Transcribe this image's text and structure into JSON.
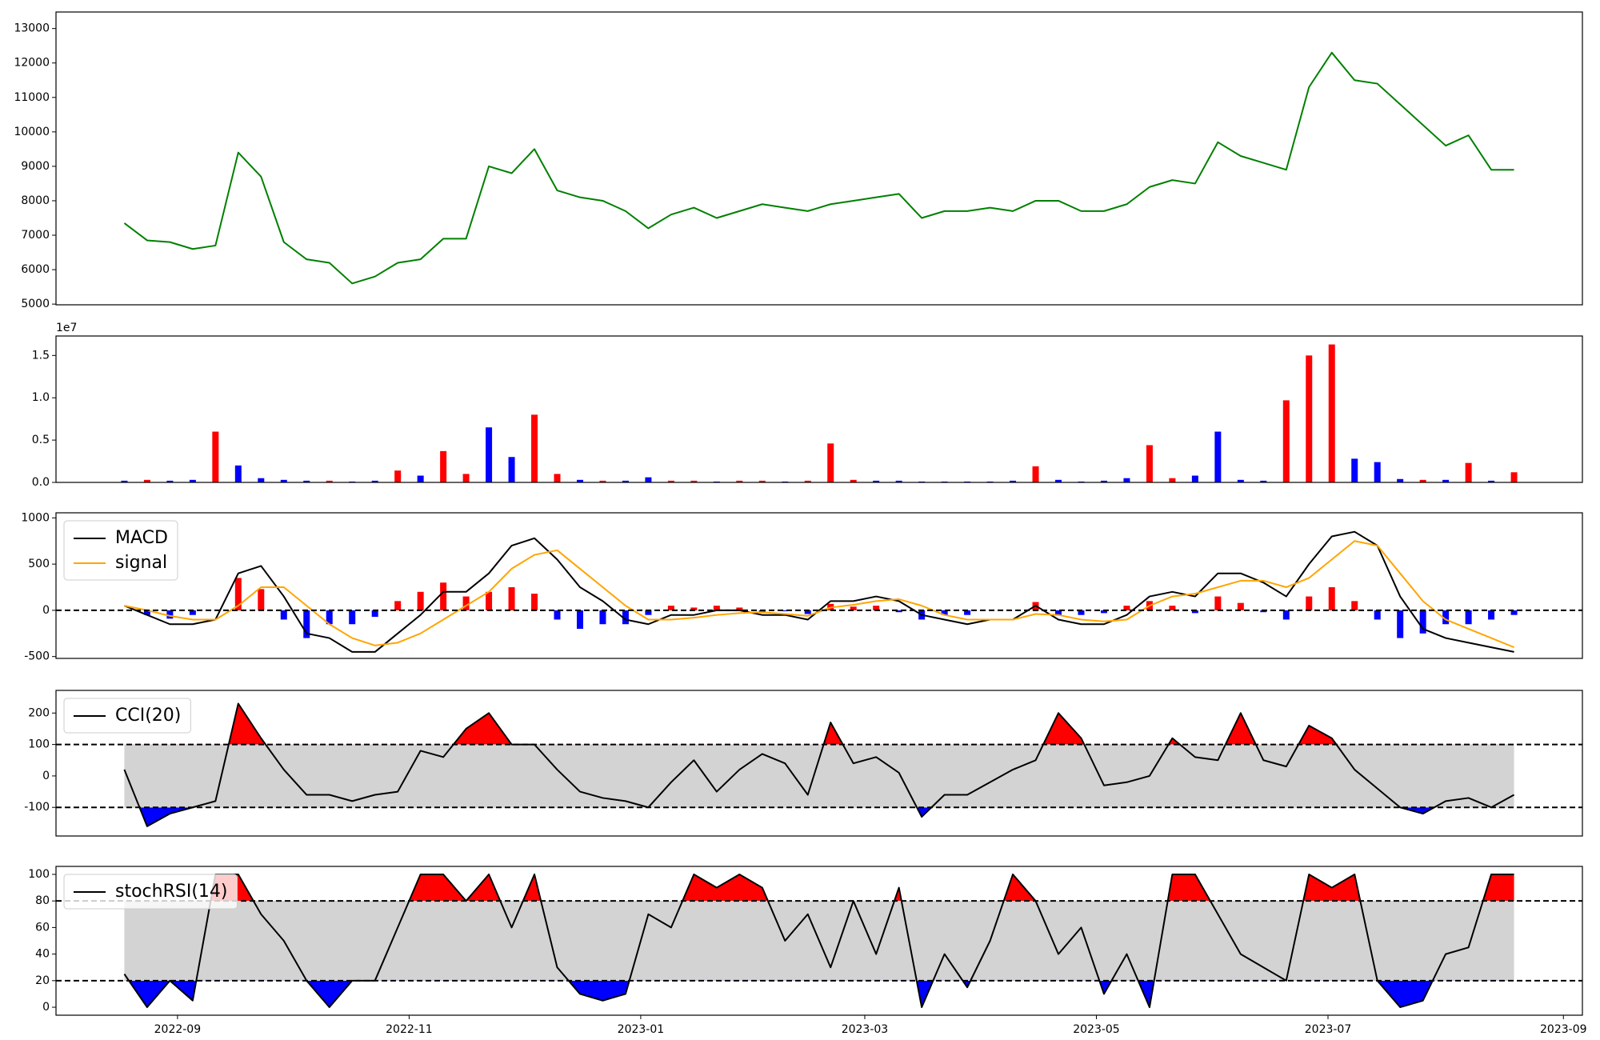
{
  "chart_data": [
    {
      "type": "line",
      "color": "green",
      "x": [
        19222,
        19228,
        19234,
        19240,
        19246,
        19252,
        19258,
        19264,
        19270,
        19276,
        19282,
        19288,
        19294,
        19300,
        19306,
        19312,
        19318,
        19324,
        19330,
        19336,
        19342,
        19348,
        19354,
        19360,
        19366,
        19372,
        19378,
        19384,
        19390,
        19396,
        19402,
        19408,
        19414,
        19420,
        19426,
        19432,
        19438,
        19444,
        19450,
        19456,
        19462,
        19468,
        19474,
        19480,
        19486,
        19492,
        19498,
        19504,
        19510,
        19516,
        19522,
        19528,
        19534,
        19540,
        19546,
        19552,
        19558,
        19564,
        19570,
        19576,
        19582,
        19588
      ],
      "values": [
        7350,
        6850,
        6800,
        6600,
        6700,
        9400,
        8700,
        6800,
        6300,
        6200,
        5600,
        5800,
        6200,
        6300,
        6900,
        6900,
        9000,
        8800,
        9500,
        8300,
        8100,
        8000,
        7700,
        7200,
        7600,
        7800,
        7500,
        7700,
        7900,
        7800,
        7700,
        7900,
        8000,
        8100,
        8200,
        7500,
        7700,
        7700,
        7800,
        7700,
        8000,
        8000,
        7700,
        7700,
        7900,
        8400,
        8600,
        8500,
        9700,
        9300,
        9100,
        8900,
        11300,
        12300,
        11500,
        11400,
        10800,
        10200,
        9600,
        9900,
        8900,
        8900
      ],
      "xlim": [
        19204,
        19606
      ],
      "ylim": [
        4980,
        13480
      ],
      "yticks": [
        5000,
        6000,
        7000,
        8000,
        9000,
        10000,
        11000,
        12000,
        13000
      ]
    },
    {
      "type": "bar",
      "offset_label": "1e7",
      "x": [
        19222,
        19228,
        19234,
        19240,
        19246,
        19252,
        19258,
        19264,
        19270,
        19276,
        19282,
        19288,
        19294,
        19300,
        19306,
        19312,
        19318,
        19324,
        19330,
        19336,
        19342,
        19348,
        19354,
        19360,
        19366,
        19372,
        19378,
        19384,
        19390,
        19396,
        19402,
        19408,
        19414,
        19420,
        19426,
        19432,
        19438,
        19444,
        19450,
        19456,
        19462,
        19468,
        19474,
        19480,
        19486,
        19492,
        19498,
        19504,
        19510,
        19516,
        19522,
        19528,
        19534,
        19540,
        19546,
        19552,
        19558,
        19564,
        19570,
        19576,
        19582,
        19588
      ],
      "values": [
        0.02,
        0.03,
        0.02,
        0.03,
        0.6,
        0.2,
        0.05,
        0.03,
        0.02,
        0.02,
        0.01,
        0.02,
        0.14,
        0.08,
        0.37,
        0.1,
        0.65,
        0.3,
        0.8,
        0.1,
        0.03,
        0.02,
        0.02,
        0.06,
        0.02,
        0.02,
        0.01,
        0.02,
        0.02,
        0.01,
        0.02,
        0.46,
        0.03,
        0.02,
        0.02,
        0.01,
        0.01,
        0.01,
        0.01,
        0.02,
        0.19,
        0.03,
        0.01,
        0.02,
        0.05,
        0.44,
        0.05,
        0.08,
        0.6,
        0.03,
        0.02,
        0.97,
        1.5,
        1.63,
        0.28,
        0.24,
        0.04,
        0.03,
        0.03,
        0.23,
        0.02,
        0.12
      ],
      "colors": [
        "blue",
        "red",
        "blue",
        "blue",
        "red",
        "blue",
        "blue",
        "blue",
        "blue",
        "red",
        "blue",
        "blue",
        "red",
        "blue",
        "red",
        "red",
        "blue",
        "blue",
        "red",
        "red",
        "blue",
        "red",
        "blue",
        "blue",
        "red",
        "red",
        "blue",
        "red",
        "red",
        "blue",
        "red",
        "red",
        "red",
        "blue",
        "blue",
        "blue",
        "blue",
        "blue",
        "blue",
        "blue",
        "red",
        "blue",
        "blue",
        "blue",
        "blue",
        "red",
        "red",
        "blue",
        "blue",
        "blue",
        "blue",
        "red",
        "red",
        "red",
        "blue",
        "blue",
        "blue",
        "red",
        "blue",
        "red",
        "blue",
        "red"
      ],
      "xlim": [
        19204,
        19606
      ],
      "ylim": [
        0,
        1.73
      ],
      "yticks": [
        {
          "value": 0,
          "label": "0.0"
        },
        0.5,
        {
          "value": 1,
          "label": "1.0"
        },
        1.5
      ]
    },
    {
      "type": "line",
      "legend": "upper left",
      "x": [
        19222,
        19228,
        19234,
        19240,
        19246,
        19252,
        19258,
        19264,
        19270,
        19276,
        19282,
        19288,
        19294,
        19300,
        19306,
        19312,
        19318,
        19324,
        19330,
        19336,
        19342,
        19348,
        19354,
        19360,
        19366,
        19372,
        19378,
        19384,
        19390,
        19396,
        19402,
        19408,
        19414,
        19420,
        19426,
        19432,
        19438,
        19444,
        19450,
        19456,
        19462,
        19468,
        19474,
        19480,
        19486,
        19492,
        19498,
        19504,
        19510,
        19516,
        19522,
        19528,
        19534,
        19540,
        19546,
        19552,
        19558,
        19564,
        19570,
        19576,
        19582,
        19588
      ],
      "series": [
        {
          "name": "MACD",
          "color": "black",
          "values": [
            50,
            -50,
            -150,
            -150,
            -100,
            400,
            480,
            150,
            -250,
            -300,
            -450,
            -450,
            -250,
            -50,
            200,
            200,
            400,
            700,
            780,
            550,
            250,
            100,
            -100,
            -150,
            -50,
            -50,
            0,
            0,
            -50,
            -50,
            -100,
            100,
            100,
            150,
            100,
            -50,
            -100,
            -150,
            -100,
            -100,
            50,
            -100,
            -150,
            -150,
            -50,
            150,
            200,
            150,
            400,
            400,
            300,
            150,
            500,
            800,
            850,
            700,
            150,
            -200,
            -300,
            -350,
            -400,
            -450
          ]
        },
        {
          "name": "signal",
          "color": "orange",
          "values": [
            50,
            0,
            -60,
            -100,
            -100,
            50,
            250,
            250,
            50,
            -150,
            -300,
            -380,
            -350,
            -250,
            -100,
            50,
            200,
            450,
            600,
            650,
            450,
            250,
            50,
            -100,
            -100,
            -80,
            -50,
            -30,
            -20,
            -40,
            -60,
            30,
            60,
            100,
            120,
            50,
            -50,
            -100,
            -100,
            -100,
            -40,
            -50,
            -100,
            -120,
            -100,
            50,
            150,
            180,
            250,
            320,
            320,
            250,
            350,
            550,
            750,
            700,
            400,
            100,
            -100,
            -200,
            -300,
            -400
          ]
        }
      ],
      "histogram": {
        "pos_color": "red",
        "neg_color": "blue",
        "values": [
          0,
          -50,
          -90,
          -50,
          0,
          350,
          230,
          -100,
          -300,
          -150,
          -150,
          -70,
          100,
          200,
          300,
          150,
          200,
          250,
          180,
          -100,
          -200,
          -150,
          -150,
          -50,
          50,
          30,
          50,
          30,
          -30,
          -10,
          -40,
          70,
          40,
          50,
          -20,
          -100,
          -50,
          -50,
          0,
          0,
          90,
          -50,
          -50,
          -30,
          50,
          100,
          50,
          -30,
          150,
          80,
          -20,
          -100,
          150,
          250,
          100,
          -100,
          -300,
          -250,
          -150,
          -150,
          -100,
          -50
        ]
      },
      "hlines": [
        0
      ],
      "xlim": [
        19204,
        19606
      ],
      "ylim": [
        -520,
        1055
      ],
      "yticks": [
        -500,
        0,
        500,
        1000
      ]
    },
    {
      "type": "line",
      "legend": "upper left",
      "band_color": "lightgray",
      "above_color": "red",
      "below_color": "blue",
      "x": [
        19222,
        19228,
        19234,
        19240,
        19246,
        19252,
        19258,
        19264,
        19270,
        19276,
        19282,
        19288,
        19294,
        19300,
        19306,
        19312,
        19318,
        19324,
        19330,
        19336,
        19342,
        19348,
        19354,
        19360,
        19366,
        19372,
        19378,
        19384,
        19390,
        19396,
        19402,
        19408,
        19414,
        19420,
        19426,
        19432,
        19438,
        19444,
        19450,
        19456,
        19462,
        19468,
        19474,
        19480,
        19486,
        19492,
        19498,
        19504,
        19510,
        19516,
        19522,
        19528,
        19534,
        19540,
        19546,
        19552,
        19558,
        19564,
        19570,
        19576,
        19582,
        19588
      ],
      "series": [
        {
          "name": "CCI(20)",
          "color": "black",
          "values": [
            20,
            -160,
            -120,
            -100,
            -80,
            230,
            120,
            20,
            -60,
            -60,
            -80,
            -60,
            -50,
            80,
            60,
            150,
            200,
            100,
            100,
            20,
            -50,
            -70,
            -80,
            -100,
            -20,
            50,
            -50,
            20,
            70,
            40,
            -60,
            170,
            40,
            60,
            10,
            -130,
            -60,
            -60,
            -20,
            20,
            50,
            200,
            120,
            -30,
            -20,
            0,
            120,
            60,
            50,
            200,
            50,
            30,
            160,
            120,
            20,
            -40,
            -100,
            -120,
            -80,
            -70,
            -100,
            -60
          ]
        }
      ],
      "hlines": [
        100,
        -100
      ],
      "xlim": [
        19204,
        19606
      ],
      "ylim": [
        -191,
        272
      ],
      "yticks": [
        -100,
        0,
        100,
        200
      ]
    },
    {
      "type": "line",
      "legend": "upper left",
      "band_color": "lightgray",
      "above_color": "red",
      "below_color": "blue",
      "x": [
        19222,
        19228,
        19234,
        19240,
        19246,
        19252,
        19258,
        19264,
        19270,
        19276,
        19282,
        19288,
        19294,
        19300,
        19306,
        19312,
        19318,
        19324,
        19330,
        19336,
        19342,
        19348,
        19354,
        19360,
        19366,
        19372,
        19378,
        19384,
        19390,
        19396,
        19402,
        19408,
        19414,
        19420,
        19426,
        19432,
        19438,
        19444,
        19450,
        19456,
        19462,
        19468,
        19474,
        19480,
        19486,
        19492,
        19498,
        19504,
        19510,
        19516,
        19522,
        19528,
        19534,
        19540,
        19546,
        19552,
        19558,
        19564,
        19570,
        19576,
        19582,
        19588
      ],
      "series": [
        {
          "name": "stochRSI(14)",
          "color": "black",
          "values": [
            25,
            0,
            20,
            5,
            100,
            100,
            70,
            50,
            20,
            0,
            20,
            20,
            60,
            100,
            100,
            80,
            100,
            60,
            100,
            30,
            10,
            5,
            10,
            70,
            60,
            100,
            90,
            100,
            90,
            50,
            70,
            30,
            80,
            40,
            90,
            0,
            40,
            15,
            50,
            100,
            80,
            40,
            60,
            10,
            40,
            0,
            100,
            100,
            70,
            40,
            30,
            20,
            100,
            90,
            100,
            20,
            0,
            5,
            40,
            45,
            100,
            100
          ]
        }
      ],
      "hlines": [
        80,
        20
      ],
      "xlim": [
        19204,
        19606
      ],
      "ylim": [
        -6,
        106
      ],
      "yticks": [
        0,
        20,
        40,
        60,
        80,
        100
      ],
      "xticks": [
        {
          "value": 19236,
          "label": "2022-09"
        },
        {
          "value": 19297,
          "label": "2022-11"
        },
        {
          "value": 19358,
          "label": "2023-01"
        },
        {
          "value": 19417,
          "label": "2023-03"
        },
        {
          "value": 19478,
          "label": "2023-05"
        },
        {
          "value": 19539,
          "label": "2023-07"
        },
        {
          "value": 19601,
          "label": "2023-09"
        }
      ]
    }
  ]
}
